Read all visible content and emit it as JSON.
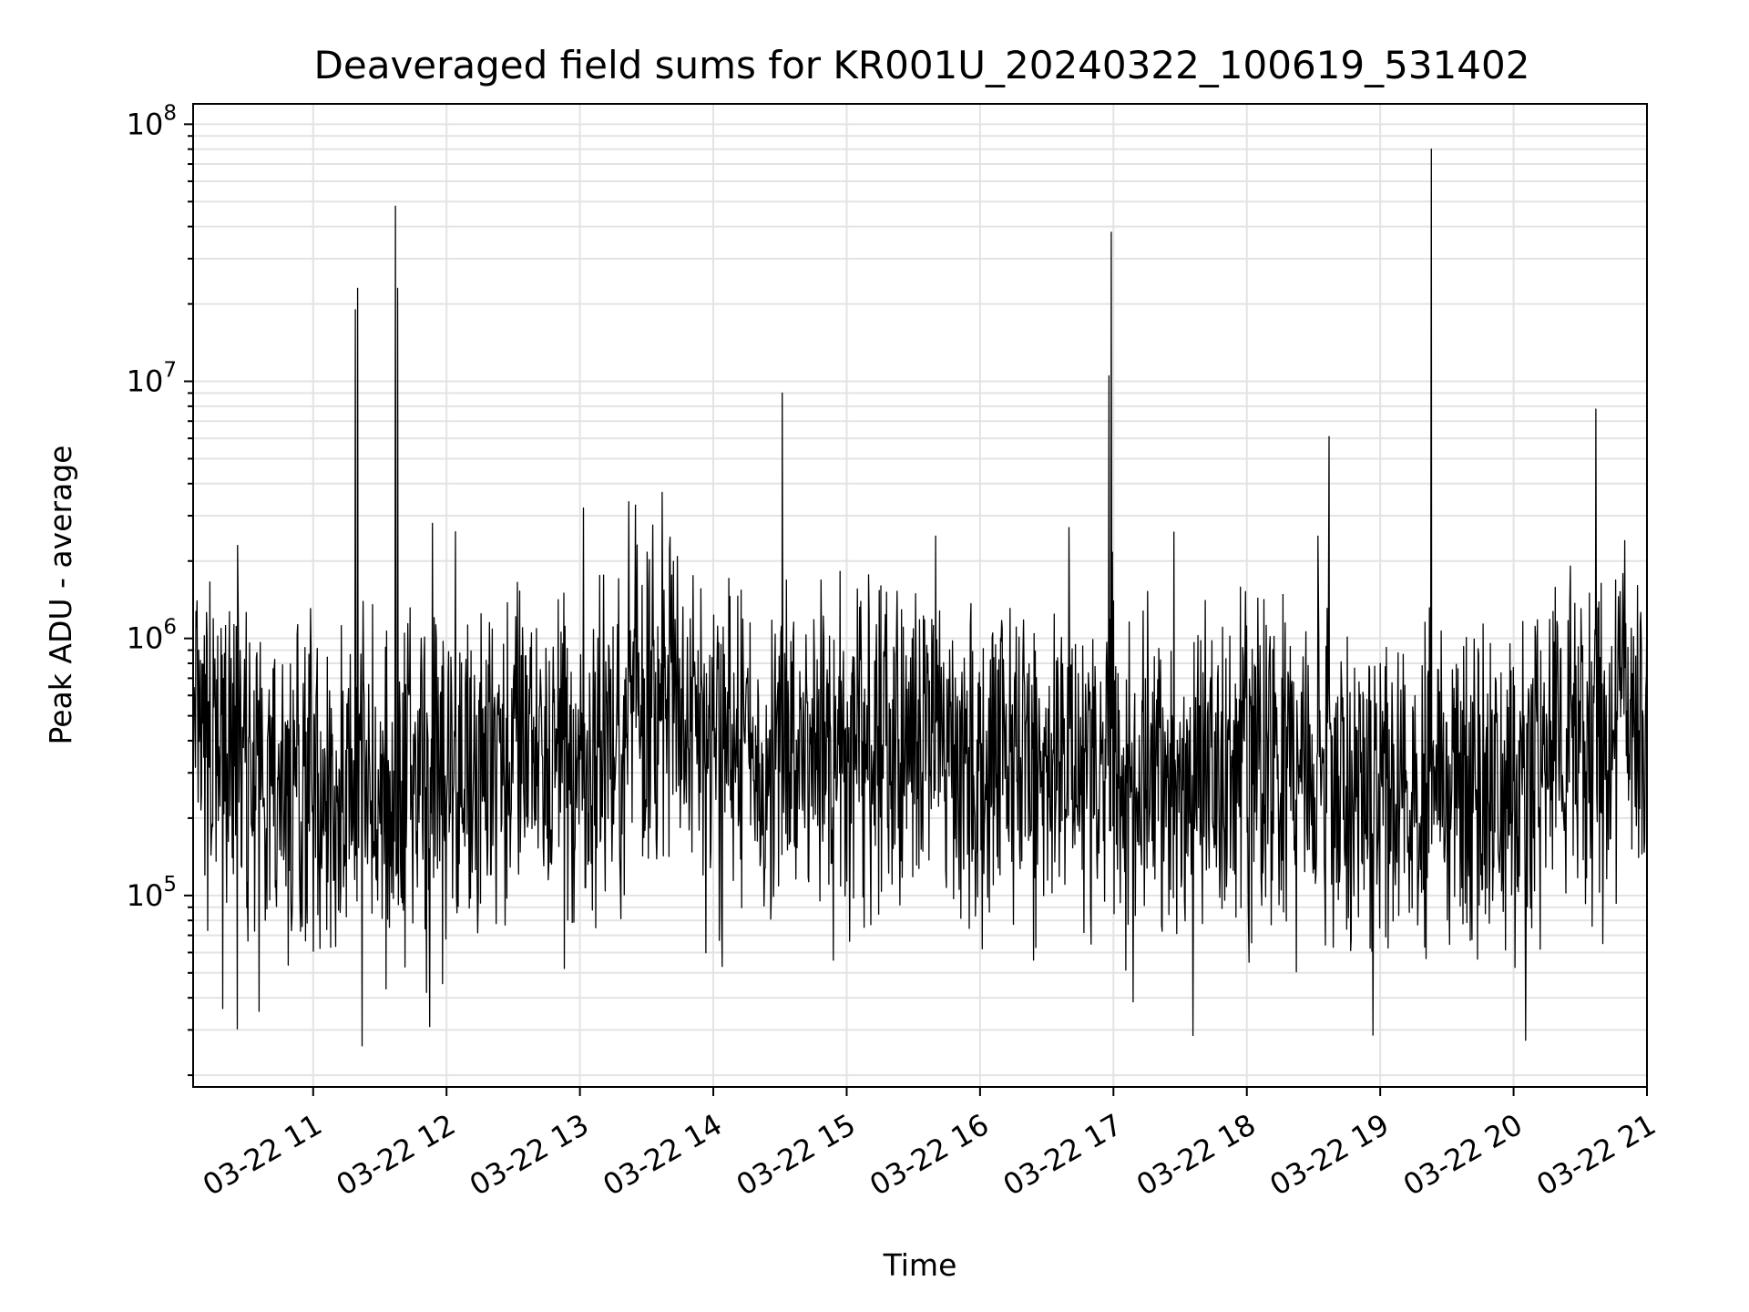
{
  "chart_data": {
    "type": "line",
    "title": "Deaveraged field sums for KR001U_20240322_100619_531402",
    "xlabel": "Time",
    "ylabel": "Peak ADU - average",
    "x_range": [
      "2024-03-22 10:06",
      "2024-03-22 21:00"
    ],
    "y_scale": "log",
    "ylim": [
      18000,
      120000000
    ],
    "grid": true,
    "x_tick_labels": [
      "03-22 11",
      "03-22 12",
      "03-22 13",
      "03-22 14",
      "03-22 15",
      "03-22 16",
      "03-22 17",
      "03-22 18",
      "03-22 19",
      "03-22 20",
      "03-22 21"
    ],
    "y_ticks": [
      {
        "base": "10",
        "exp": "5",
        "value": 100000
      },
      {
        "base": "10",
        "exp": "6",
        "value": 1000000
      },
      {
        "base": "10",
        "exp": "7",
        "value": 10000000
      },
      {
        "base": "10",
        "exp": "8",
        "value": 100000000
      }
    ],
    "series": [
      {
        "color": "#000000",
        "baseline": [
          [
            "2024-03-22 10:06",
            350000
          ],
          [
            "2024-03-22 11:00",
            260000
          ],
          [
            "2024-03-22 11:30",
            240000
          ],
          [
            "2024-03-22 12:00",
            300000
          ],
          [
            "2024-03-22 12:30",
            360000
          ],
          [
            "2024-03-22 13:00",
            320000
          ],
          [
            "2024-03-22 13:30",
            520000
          ],
          [
            "2024-03-22 14:00",
            480000
          ],
          [
            "2024-03-22 14:30",
            330000
          ],
          [
            "2024-03-22 15:00",
            420000
          ],
          [
            "2024-03-22 15:30",
            360000
          ],
          [
            "2024-03-22 16:00",
            300000
          ],
          [
            "2024-03-22 16:30",
            330000
          ],
          [
            "2024-03-22 17:00",
            320000
          ],
          [
            "2024-03-22 17:30",
            280000
          ],
          [
            "2024-03-22 18:00",
            350000
          ],
          [
            "2024-03-22 18:30",
            310000
          ],
          [
            "2024-03-22 19:00",
            250000
          ],
          [
            "2024-03-22 19:30",
            260000
          ],
          [
            "2024-03-22 20:00",
            270000
          ],
          [
            "2024-03-22 20:40",
            450000
          ],
          [
            "2024-03-22 21:00",
            520000
          ]
        ],
        "spikes": [
          [
            "2024-03-22 10:26",
            2300000
          ],
          [
            "2024-03-22 11:19",
            19000000
          ],
          [
            "2024-03-22 11:20",
            23000000
          ],
          [
            "2024-03-22 11:22",
            26000
          ],
          [
            "2024-03-22 11:37",
            48000000
          ],
          [
            "2024-03-22 11:38",
            23000000
          ],
          [
            "2024-03-22 11:51",
            42000
          ],
          [
            "2024-03-22 12:04",
            2600000
          ],
          [
            "2024-03-22 12:53",
            52000
          ],
          [
            "2024-03-22 13:22",
            3400000
          ],
          [
            "2024-03-22 13:25",
            3300000
          ],
          [
            "2024-03-22 13:37",
            3700000
          ],
          [
            "2024-03-22 14:04",
            53000
          ],
          [
            "2024-03-22 14:31",
            9000000
          ],
          [
            "2024-03-22 14:54",
            56000
          ],
          [
            "2024-03-22 15:40",
            2500000
          ],
          [
            "2024-03-22 16:01",
            62000
          ],
          [
            "2024-03-22 16:40",
            2700000
          ],
          [
            "2024-03-22 16:59",
            38000000
          ],
          [
            "2024-03-22 16:58",
            10500000
          ],
          [
            "2024-03-22 18:01",
            55000
          ],
          [
            "2024-03-22 18:32",
            2500000
          ],
          [
            "2024-03-22 18:37",
            6100000
          ],
          [
            "2024-03-22 19:23",
            80000000
          ],
          [
            "2024-03-22 19:20",
            63000
          ],
          [
            "2024-03-22 20:37",
            7800000
          ],
          [
            "2024-03-22 20:50",
            2400000
          ]
        ]
      }
    ]
  }
}
